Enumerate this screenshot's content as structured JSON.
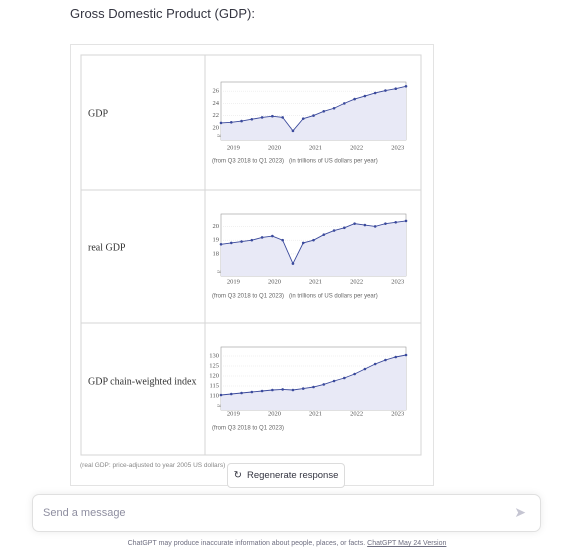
{
  "heading": "Gross Domestic Product (GDP):",
  "table": {
    "rows": [
      {
        "label": "GDP",
        "chart": {
          "type": "line",
          "color": "#3b4a9c",
          "area_color": "#e8e9f6",
          "x": [
            2018.7,
            2018.95,
            2019.2,
            2019.45,
            2019.7,
            2019.95,
            2020.2,
            2020.45,
            2020.7,
            2020.95,
            2021.2,
            2021.45,
            2021.7,
            2021.95,
            2022.2,
            2022.45,
            2022.7,
            2022.95,
            2023.2
          ],
          "values": [
            20.8,
            20.9,
            21.1,
            21.4,
            21.7,
            21.9,
            21.7,
            19.5,
            21.5,
            22.0,
            22.7,
            23.2,
            24.0,
            24.7,
            25.2,
            25.7,
            26.1,
            26.4,
            26.8
          ],
          "xlim": [
            2018.7,
            2023.2
          ],
          "xticks": [
            2019,
            2020,
            2021,
            2022,
            2023
          ],
          "ylim": [
            18,
            27.5
          ],
          "yticks": [
            20,
            22,
            24,
            26
          ],
          "grid": true,
          "captions": [
            "(from Q3 2018 to Q1 2023)",
            "(in trillions of US dollars per year)"
          ]
        }
      },
      {
        "label": "real GDP",
        "chart": {
          "type": "line",
          "color": "#3b4a9c",
          "area_color": "#e8e9f6",
          "x": [
            2018.7,
            2018.95,
            2019.2,
            2019.45,
            2019.7,
            2019.95,
            2020.2,
            2020.45,
            2020.7,
            2020.95,
            2021.2,
            2021.45,
            2021.7,
            2021.95,
            2022.2,
            2022.45,
            2022.7,
            2022.95,
            2023.2
          ],
          "values": [
            18.7,
            18.8,
            18.9,
            19.0,
            19.2,
            19.3,
            19.0,
            17.3,
            18.8,
            19.0,
            19.4,
            19.7,
            19.9,
            20.2,
            20.1,
            20.0,
            20.2,
            20.3,
            20.4
          ],
          "xlim": [
            2018.7,
            2023.2
          ],
          "xticks": [
            2019,
            2020,
            2021,
            2022,
            2023
          ],
          "ylim": [
            16.4,
            20.9
          ],
          "yticks": [
            18,
            19,
            20
          ],
          "grid": true,
          "captions": [
            "(from Q3 2018 to Q1 2023)",
            "(in trillions of US dollars per year)"
          ]
        }
      },
      {
        "label": "GDP chain-weighted index",
        "chart": {
          "type": "line",
          "color": "#3b4a9c",
          "area_color": "#e8e9f6",
          "x": [
            2018.7,
            2018.95,
            2019.2,
            2019.45,
            2019.7,
            2019.95,
            2020.2,
            2020.45,
            2020.7,
            2020.95,
            2021.2,
            2021.45,
            2021.7,
            2021.95,
            2022.2,
            2022.45,
            2022.7,
            2022.95,
            2023.2
          ],
          "values": [
            110.5,
            111,
            111.5,
            112,
            112.5,
            113,
            113.3,
            113,
            113.7,
            114.5,
            115.8,
            117.5,
            119,
            121,
            123.5,
            126,
            128,
            129.5,
            130.5
          ],
          "xlim": [
            2018.7,
            2023.2
          ],
          "xticks": [
            2019,
            2020,
            2021,
            2022,
            2023
          ],
          "ylim": [
            103,
            134.5
          ],
          "yticks": [
            110,
            115,
            120,
            125,
            130
          ],
          "grid": true,
          "captions": [
            "(from Q3 2018 to Q1 2023)"
          ]
        }
      }
    ]
  },
  "footnote": "(real GDP: price-adjusted to year 2005 US dollars)",
  "regenerate_button": "Regenerate response",
  "input_placeholder": "Send a message",
  "footer": {
    "text": "ChatGPT may produce inaccurate information about people, places, or facts.",
    "link": "ChatGPT May 24 Version"
  }
}
